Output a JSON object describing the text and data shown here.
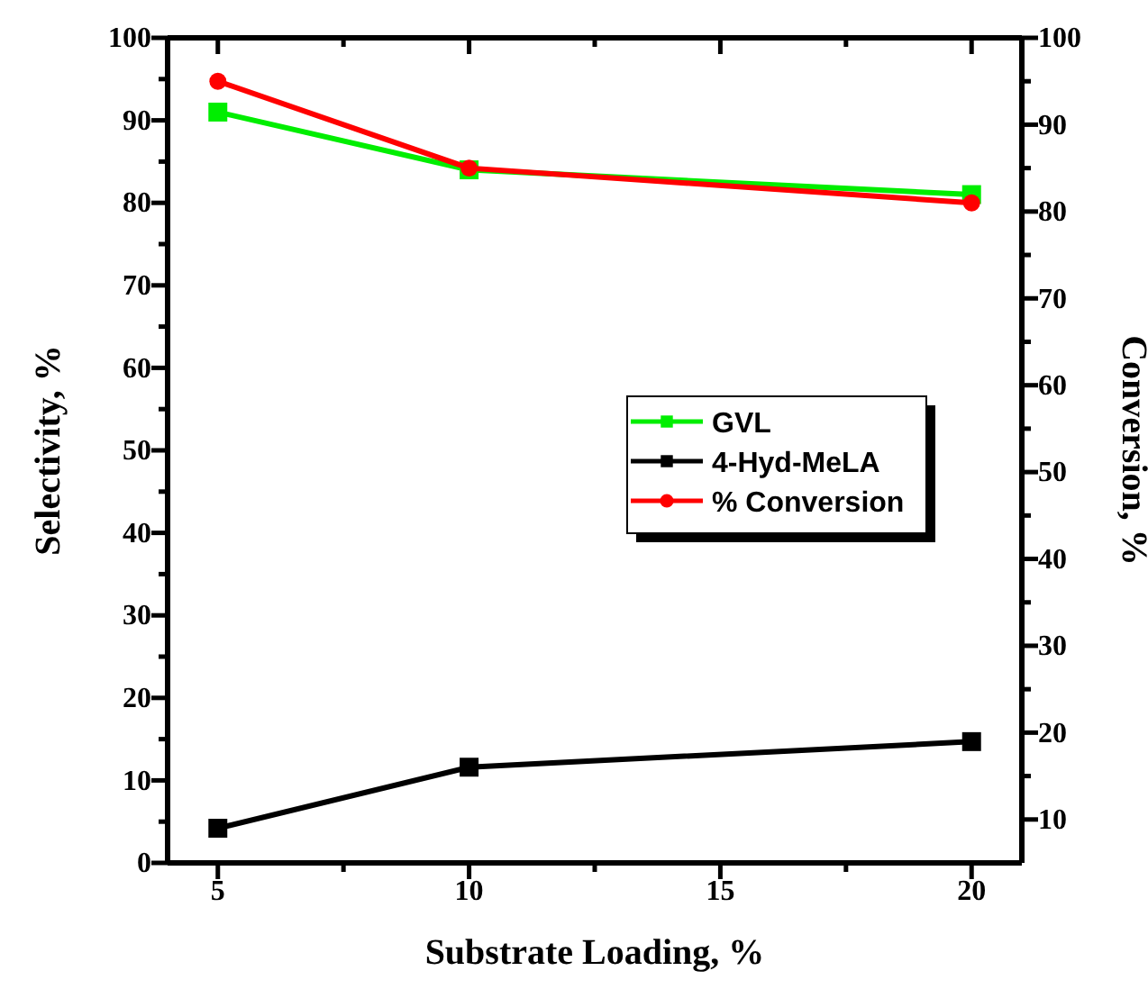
{
  "chart_data": {
    "type": "line",
    "xlabel": "Substrate Loading, %",
    "ylabel": "Selectivity, %",
    "y2label": "Conversion, %",
    "x": [
      5,
      10,
      20
    ],
    "xlim": [
      4,
      21
    ],
    "xticks": [
      5,
      {
        "value": 7.5,
        "label": null
      },
      10,
      {
        "value": 12.5,
        "label": null
      },
      15,
      {
        "value": 17.5,
        "label": null
      },
      20
    ],
    "ylim": [
      0,
      100
    ],
    "yticks": [
      0,
      {
        "value": 5,
        "label": null
      },
      10,
      {
        "value": 15,
        "label": null
      },
      20,
      {
        "value": 25,
        "label": null
      },
      30,
      {
        "value": 35,
        "label": null
      },
      40,
      {
        "value": 45,
        "label": null
      },
      50,
      {
        "value": 55,
        "label": null
      },
      60,
      {
        "value": 65,
        "label": null
      },
      70,
      {
        "value": 75,
        "label": null
      },
      80,
      {
        "value": 85,
        "label": null
      },
      90,
      {
        "value": 95,
        "label": null
      },
      100
    ],
    "y2lim": [
      5,
      100
    ],
    "y2ticks": [
      10,
      {
        "value": 15,
        "label": null
      },
      20,
      {
        "value": 25,
        "label": null
      },
      30,
      {
        "value": 35,
        "label": null
      },
      40,
      {
        "value": 45,
        "label": null
      },
      50,
      {
        "value": 55,
        "label": null
      },
      60,
      {
        "value": 65,
        "label": null
      },
      70,
      {
        "value": 75,
        "label": null
      },
      80,
      {
        "value": 85,
        "label": null
      },
      90,
      {
        "value": 95,
        "label": null
      },
      100
    ],
    "series": [
      {
        "name": "GVL",
        "color": "#00ee00",
        "values": [
          91,
          84,
          81
        ],
        "marker": "square"
      },
      {
        "name": "4-Hyd-MeLA",
        "color": "#000000",
        "values": [
          4.2,
          11.6,
          14.7
        ],
        "marker": "square"
      },
      {
        "name": "% Conversion",
        "color": "#ff0000",
        "values": [
          95,
          85,
          81
        ],
        "marker": "circle",
        "axis": "y2"
      }
    ],
    "legend": "right",
    "grid": false,
    "line_style": "solid"
  }
}
